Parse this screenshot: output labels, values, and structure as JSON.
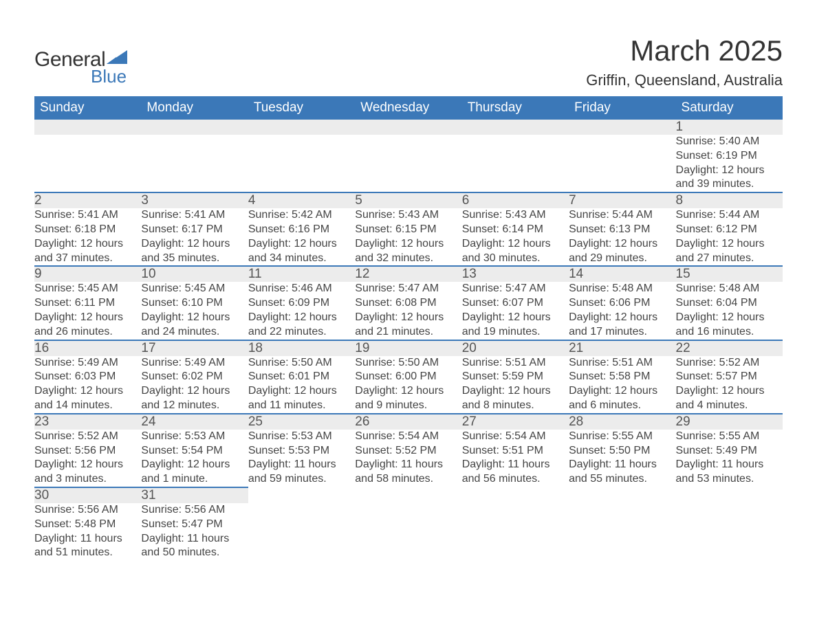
{
  "brand": {
    "name_part1": "General",
    "name_part2": "Blue",
    "colors": {
      "logo_text": "#333333",
      "logo_blue": "#3b78b8"
    }
  },
  "title": "March 2025",
  "subtitle": "Griffin, Queensland, Australia",
  "calendar": {
    "type": "table",
    "header_bg": "#3b78b8",
    "header_text_color": "#ffffff",
    "daynum_bg": "#ececec",
    "row_divider_color": "#3b78b8",
    "text_color": "#444444",
    "columns": [
      "Sunday",
      "Monday",
      "Tuesday",
      "Wednesday",
      "Thursday",
      "Friday",
      "Saturday"
    ],
    "weeks": [
      [
        null,
        null,
        null,
        null,
        null,
        null,
        {
          "day": "1",
          "sunrise": "Sunrise: 5:40 AM",
          "sunset": "Sunset: 6:19 PM",
          "daylight1": "Daylight: 12 hours",
          "daylight2": "and 39 minutes."
        }
      ],
      [
        {
          "day": "2",
          "sunrise": "Sunrise: 5:41 AM",
          "sunset": "Sunset: 6:18 PM",
          "daylight1": "Daylight: 12 hours",
          "daylight2": "and 37 minutes."
        },
        {
          "day": "3",
          "sunrise": "Sunrise: 5:41 AM",
          "sunset": "Sunset: 6:17 PM",
          "daylight1": "Daylight: 12 hours",
          "daylight2": "and 35 minutes."
        },
        {
          "day": "4",
          "sunrise": "Sunrise: 5:42 AM",
          "sunset": "Sunset: 6:16 PM",
          "daylight1": "Daylight: 12 hours",
          "daylight2": "and 34 minutes."
        },
        {
          "day": "5",
          "sunrise": "Sunrise: 5:43 AM",
          "sunset": "Sunset: 6:15 PM",
          "daylight1": "Daylight: 12 hours",
          "daylight2": "and 32 minutes."
        },
        {
          "day": "6",
          "sunrise": "Sunrise: 5:43 AM",
          "sunset": "Sunset: 6:14 PM",
          "daylight1": "Daylight: 12 hours",
          "daylight2": "and 30 minutes."
        },
        {
          "day": "7",
          "sunrise": "Sunrise: 5:44 AM",
          "sunset": "Sunset: 6:13 PM",
          "daylight1": "Daylight: 12 hours",
          "daylight2": "and 29 minutes."
        },
        {
          "day": "8",
          "sunrise": "Sunrise: 5:44 AM",
          "sunset": "Sunset: 6:12 PM",
          "daylight1": "Daylight: 12 hours",
          "daylight2": "and 27 minutes."
        }
      ],
      [
        {
          "day": "9",
          "sunrise": "Sunrise: 5:45 AM",
          "sunset": "Sunset: 6:11 PM",
          "daylight1": "Daylight: 12 hours",
          "daylight2": "and 26 minutes."
        },
        {
          "day": "10",
          "sunrise": "Sunrise: 5:45 AM",
          "sunset": "Sunset: 6:10 PM",
          "daylight1": "Daylight: 12 hours",
          "daylight2": "and 24 minutes."
        },
        {
          "day": "11",
          "sunrise": "Sunrise: 5:46 AM",
          "sunset": "Sunset: 6:09 PM",
          "daylight1": "Daylight: 12 hours",
          "daylight2": "and 22 minutes."
        },
        {
          "day": "12",
          "sunrise": "Sunrise: 5:47 AM",
          "sunset": "Sunset: 6:08 PM",
          "daylight1": "Daylight: 12 hours",
          "daylight2": "and 21 minutes."
        },
        {
          "day": "13",
          "sunrise": "Sunrise: 5:47 AM",
          "sunset": "Sunset: 6:07 PM",
          "daylight1": "Daylight: 12 hours",
          "daylight2": "and 19 minutes."
        },
        {
          "day": "14",
          "sunrise": "Sunrise: 5:48 AM",
          "sunset": "Sunset: 6:06 PM",
          "daylight1": "Daylight: 12 hours",
          "daylight2": "and 17 minutes."
        },
        {
          "day": "15",
          "sunrise": "Sunrise: 5:48 AM",
          "sunset": "Sunset: 6:04 PM",
          "daylight1": "Daylight: 12 hours",
          "daylight2": "and 16 minutes."
        }
      ],
      [
        {
          "day": "16",
          "sunrise": "Sunrise: 5:49 AM",
          "sunset": "Sunset: 6:03 PM",
          "daylight1": "Daylight: 12 hours",
          "daylight2": "and 14 minutes."
        },
        {
          "day": "17",
          "sunrise": "Sunrise: 5:49 AM",
          "sunset": "Sunset: 6:02 PM",
          "daylight1": "Daylight: 12 hours",
          "daylight2": "and 12 minutes."
        },
        {
          "day": "18",
          "sunrise": "Sunrise: 5:50 AM",
          "sunset": "Sunset: 6:01 PM",
          "daylight1": "Daylight: 12 hours",
          "daylight2": "and 11 minutes."
        },
        {
          "day": "19",
          "sunrise": "Sunrise: 5:50 AM",
          "sunset": "Sunset: 6:00 PM",
          "daylight1": "Daylight: 12 hours",
          "daylight2": "and 9 minutes."
        },
        {
          "day": "20",
          "sunrise": "Sunrise: 5:51 AM",
          "sunset": "Sunset: 5:59 PM",
          "daylight1": "Daylight: 12 hours",
          "daylight2": "and 8 minutes."
        },
        {
          "day": "21",
          "sunrise": "Sunrise: 5:51 AM",
          "sunset": "Sunset: 5:58 PM",
          "daylight1": "Daylight: 12 hours",
          "daylight2": "and 6 minutes."
        },
        {
          "day": "22",
          "sunrise": "Sunrise: 5:52 AM",
          "sunset": "Sunset: 5:57 PM",
          "daylight1": "Daylight: 12 hours",
          "daylight2": "and 4 minutes."
        }
      ],
      [
        {
          "day": "23",
          "sunrise": "Sunrise: 5:52 AM",
          "sunset": "Sunset: 5:56 PM",
          "daylight1": "Daylight: 12 hours",
          "daylight2": "and 3 minutes."
        },
        {
          "day": "24",
          "sunrise": "Sunrise: 5:53 AM",
          "sunset": "Sunset: 5:54 PM",
          "daylight1": "Daylight: 12 hours",
          "daylight2": "and 1 minute."
        },
        {
          "day": "25",
          "sunrise": "Sunrise: 5:53 AM",
          "sunset": "Sunset: 5:53 PM",
          "daylight1": "Daylight: 11 hours",
          "daylight2": "and 59 minutes."
        },
        {
          "day": "26",
          "sunrise": "Sunrise: 5:54 AM",
          "sunset": "Sunset: 5:52 PM",
          "daylight1": "Daylight: 11 hours",
          "daylight2": "and 58 minutes."
        },
        {
          "day": "27",
          "sunrise": "Sunrise: 5:54 AM",
          "sunset": "Sunset: 5:51 PM",
          "daylight1": "Daylight: 11 hours",
          "daylight2": "and 56 minutes."
        },
        {
          "day": "28",
          "sunrise": "Sunrise: 5:55 AM",
          "sunset": "Sunset: 5:50 PM",
          "daylight1": "Daylight: 11 hours",
          "daylight2": "and 55 minutes."
        },
        {
          "day": "29",
          "sunrise": "Sunrise: 5:55 AM",
          "sunset": "Sunset: 5:49 PM",
          "daylight1": "Daylight: 11 hours",
          "daylight2": "and 53 minutes."
        }
      ],
      [
        {
          "day": "30",
          "sunrise": "Sunrise: 5:56 AM",
          "sunset": "Sunset: 5:48 PM",
          "daylight1": "Daylight: 11 hours",
          "daylight2": "and 51 minutes."
        },
        {
          "day": "31",
          "sunrise": "Sunrise: 5:56 AM",
          "sunset": "Sunset: 5:47 PM",
          "daylight1": "Daylight: 11 hours",
          "daylight2": "and 50 minutes."
        },
        null,
        null,
        null,
        null,
        null
      ]
    ]
  }
}
